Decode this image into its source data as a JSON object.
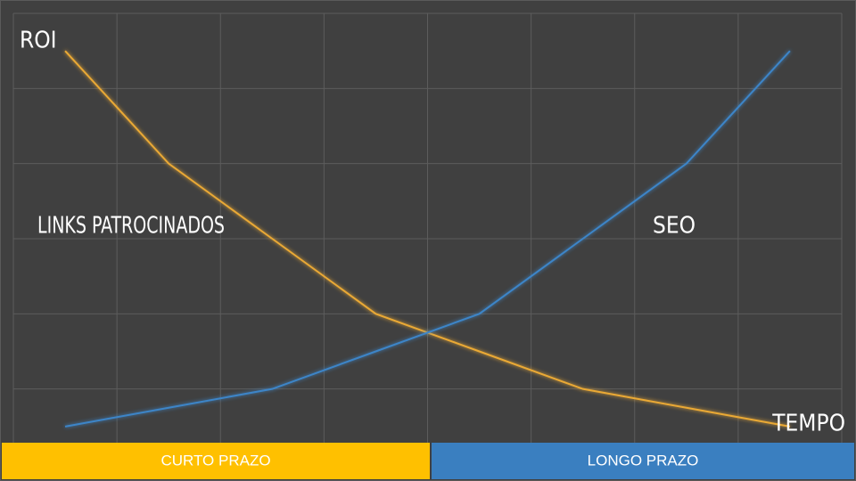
{
  "chart_data": {
    "type": "line",
    "y_label": "ROI",
    "x_label": "TEMPO",
    "categories": [
      null,
      null,
      null,
      null,
      null,
      null,
      null,
      null
    ],
    "series": [
      {
        "name": "LINKS PATROCINADOS",
        "color": "#eaa935",
        "values": [
          5.5,
          4,
          3,
          2,
          1.5,
          1,
          0.75,
          0.5
        ]
      },
      {
        "name": "SEO",
        "color": "#3c85c8",
        "values": [
          0.5,
          0.75,
          1,
          1.5,
          2,
          3,
          4,
          5.5
        ]
      }
    ],
    "ylim": [
      0,
      6
    ],
    "grid": true,
    "footer": [
      "CURTO PRAZO",
      "LONGO PRAZO"
    ]
  }
}
